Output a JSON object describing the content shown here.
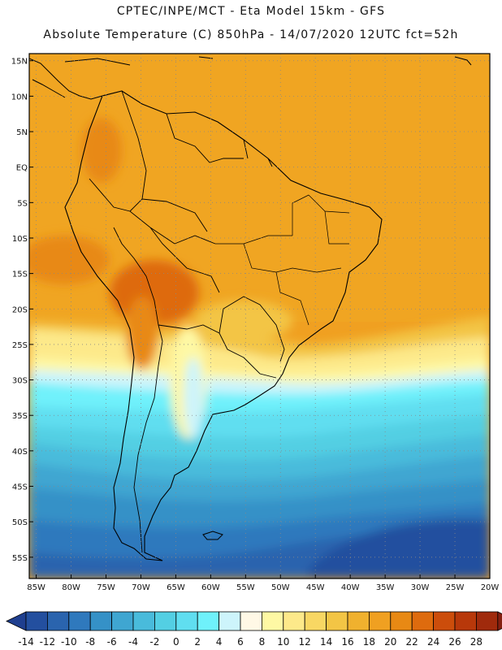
{
  "header": {
    "line1": "CPTEC/INPE/MCT -  Eta Model 15km - GFS",
    "line2": "Absolute Temperature (C) 850hPa - 14/07/2020 12UTC fct=52h"
  },
  "map": {
    "lat_labels": [
      "15N",
      "10N",
      "5N",
      "EQ",
      "5S",
      "10S",
      "15S",
      "20S",
      "25S",
      "30S",
      "35S",
      "40S",
      "45S",
      "50S",
      "55S"
    ],
    "lon_labels": [
      "85W",
      "80W",
      "75W",
      "70W",
      "65W",
      "60W",
      "55W",
      "50W",
      "45W",
      "40W",
      "35W",
      "30W",
      "25W",
      "20W"
    ],
    "lat_range": [
      16,
      -58
    ],
    "lon_range": [
      -86,
      -20
    ]
  },
  "colorbar": {
    "labels": [
      "-14",
      "-12",
      "-10",
      "-8",
      "-6",
      "-4",
      "-2",
      "0",
      "2",
      "4",
      "6",
      "8",
      "10",
      "12",
      "14",
      "16",
      "18",
      "20",
      "22",
      "24",
      "26",
      "28"
    ],
    "colors": [
      "#1f3f8f",
      "#234f9f",
      "#2a64ae",
      "#2f79bd",
      "#3591c7",
      "#3fa6d1",
      "#49bbdb",
      "#53cfe3",
      "#60def0",
      "#6ff1fb",
      "#cdf4fb",
      "#fff8e6",
      "#fef8a4",
      "#fde98a",
      "#f8d763",
      "#f3c545",
      "#f0b12e",
      "#f0a021",
      "#e88914",
      "#de6b0e",
      "#cc4d0b",
      "#b8380a",
      "#a02a0c",
      "#851f10"
    ]
  }
}
